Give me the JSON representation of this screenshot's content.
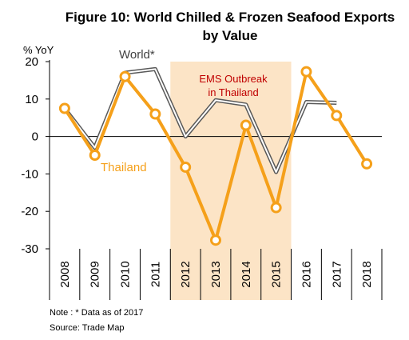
{
  "chart_data": {
    "type": "line",
    "title_line1": "Figure 10: World Chilled & Frozen Seafood Exports",
    "title_line2": "by Value",
    "ylabel": "% YoY",
    "ylim": [
      -30,
      20
    ],
    "yticks": [
      20,
      10,
      0,
      -10,
      -20,
      -30
    ],
    "x": [
      "2008",
      "2009",
      "2010",
      "2011",
      "2012",
      "2013",
      "2014",
      "2015",
      "2016",
      "2017",
      "2018"
    ],
    "series": [
      {
        "name": "World*",
        "color": "#595959",
        "style": "double-line",
        "values": [
          7.5,
          -3.0,
          17.0,
          18.0,
          0.0,
          9.7,
          8.5,
          -9.5,
          9.2,
          9.0,
          null
        ]
      },
      {
        "name": "Thailand",
        "color": "#F5A01A",
        "style": "line-with-markers",
        "values": [
          7.5,
          -5.0,
          16.0,
          6.0,
          -8.2,
          -27.7,
          3.0,
          -19.0,
          17.3,
          5.6,
          -7.3
        ]
      }
    ],
    "shaded_region": {
      "from": "2012",
      "to": "2015",
      "color": "#FCE4C6",
      "label_line1": "EMS Outbreak",
      "label_line2": "in Thailand",
      "label_color": "#C00000"
    },
    "legend": "inline labels"
  },
  "notes": {
    "note": "Note : * Data as of 2017",
    "source": "Source: Trade Map"
  }
}
